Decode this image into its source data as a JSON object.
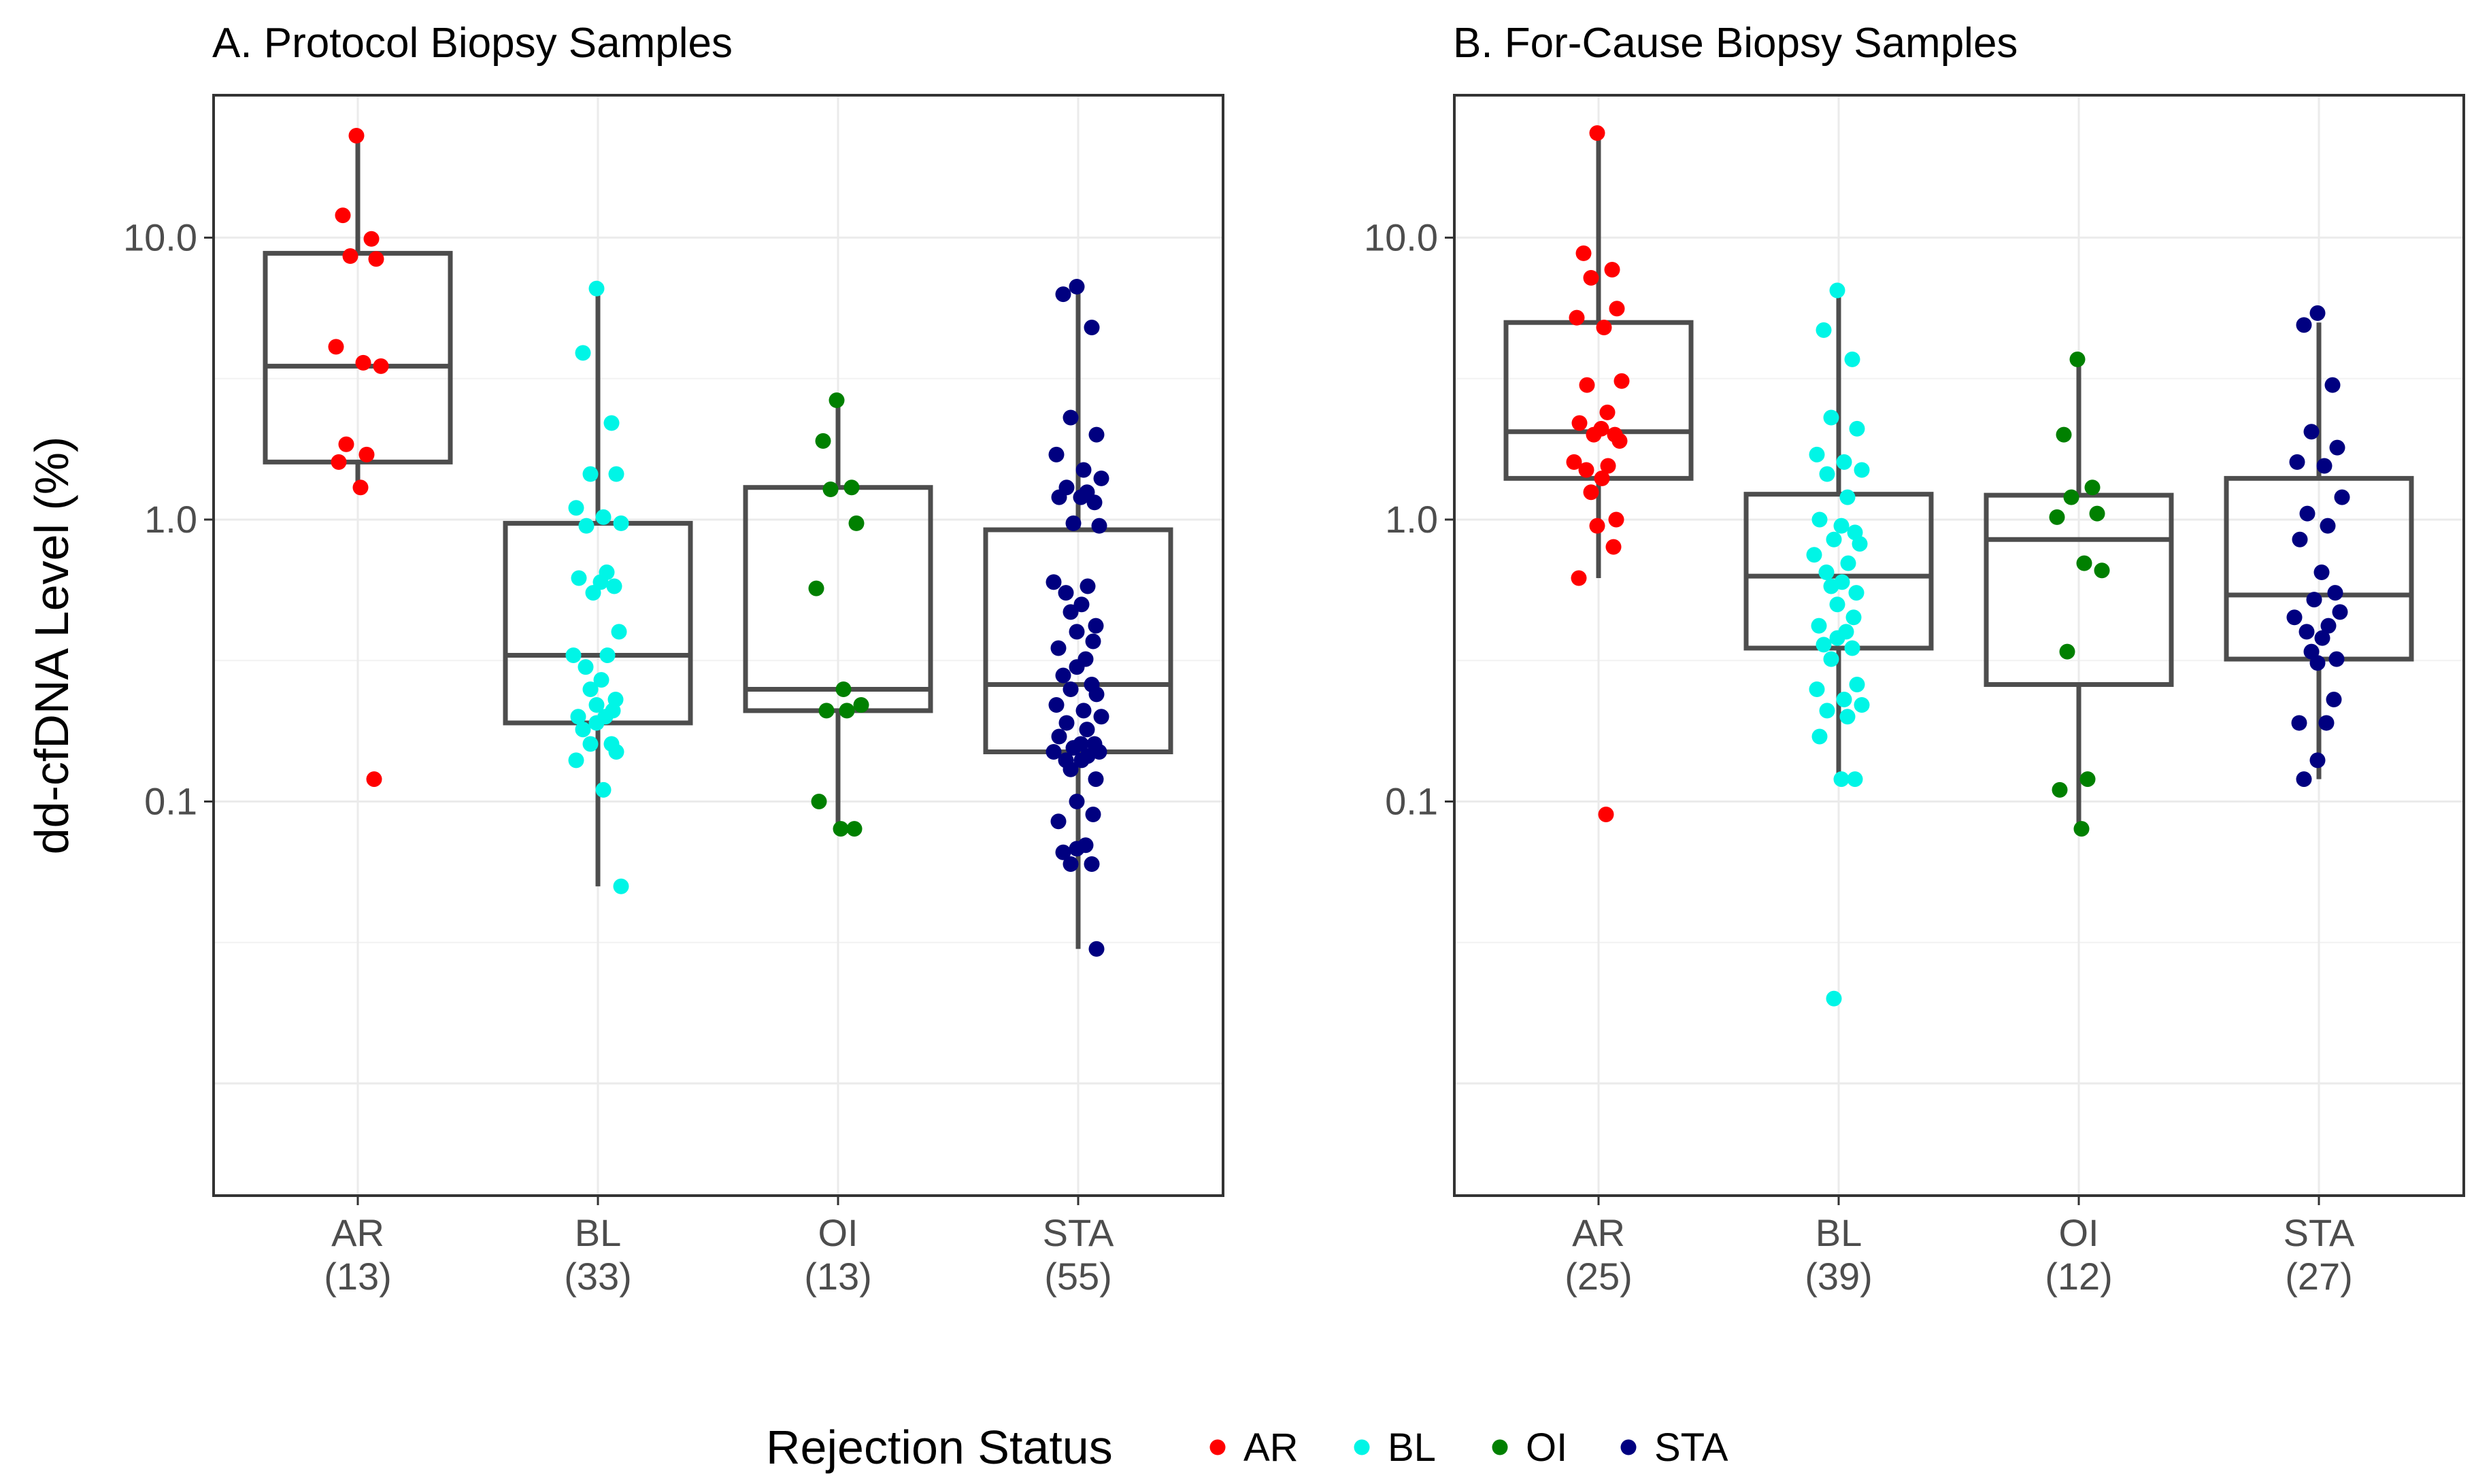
{
  "chart_data": {
    "type": "box-jitter",
    "y_scale": "log10",
    "ylabel": "dd-cfDNA Level (%)",
    "y_ticks": [
      {
        "value": 0.1,
        "label": "0.1"
      },
      {
        "value": 1.0,
        "label": "1.0"
      },
      {
        "value": 10.0,
        "label": "10.0"
      }
    ],
    "ylim": [
      0.004,
      32
    ],
    "categories": [
      "AR",
      "BL",
      "OI",
      "STA"
    ],
    "legend": {
      "title": "Rejection Status",
      "position": "bottom",
      "entries": [
        {
          "label": "AR",
          "color": "#ff0000"
        },
        {
          "label": "BL",
          "color": "#00f5e6"
        },
        {
          "label": "OI",
          "color": "#008000"
        },
        {
          "label": "STA",
          "color": "#000080"
        }
      ]
    },
    "panels": [
      {
        "title": "A. Protocol Biopsy Samples",
        "groups": [
          {
            "category": "AR",
            "n_label": "(13)",
            "box": {
              "lower_whisker": 1.3,
              "q1": 1.6,
              "median": 3.5,
              "q3": 8.8,
              "upper_whisker": 23
            },
            "points": [
              23,
              12,
              9.9,
              8.6,
              8.4,
              4.1,
              3.6,
              3.5,
              1.85,
              1.7,
              1.6,
              1.3,
              0.12
            ]
          },
          {
            "category": "BL",
            "n_label": "(33)",
            "box": {
              "lower_whisker": 0.05,
              "q1": 0.19,
              "median": 0.33,
              "q3": 0.97,
              "upper_whisker": 6.5
            },
            "points": [
              6.6,
              3.9,
              2.2,
              1.45,
              1.45,
              1.1,
              1.02,
              0.97,
              0.95,
              0.65,
              0.62,
              0.6,
              0.58,
              0.55,
              0.4,
              0.33,
              0.33,
              0.3,
              0.27,
              0.25,
              0.23,
              0.22,
              0.21,
              0.2,
              0.2,
              0.19,
              0.18,
              0.16,
              0.16,
              0.15,
              0.14,
              0.11,
              0.05
            ]
          },
          {
            "category": "OI",
            "n_label": "(13)",
            "box": {
              "lower_whisker": 0.08,
              "q1": 0.21,
              "median": 0.25,
              "q3": 1.3,
              "upper_whisker": 2.6
            },
            "points": [
              2.65,
              1.9,
              1.3,
              1.28,
              0.97,
              0.57,
              0.25,
              0.22,
              0.21,
              0.21,
              0.1,
              0.08,
              0.08
            ]
          },
          {
            "category": "STA",
            "n_label": "(55)",
            "box": {
              "lower_whisker": 0.03,
              "q1": 0.15,
              "median": 0.26,
              "q3": 0.92,
              "upper_whisker": 6.5
            },
            "points": [
              6.7,
              6.3,
              4.8,
              2.3,
              2.0,
              1.7,
              1.5,
              1.4,
              1.3,
              1.25,
              1.2,
              1.2,
              1.15,
              0.97,
              0.95,
              0.6,
              0.58,
              0.55,
              0.5,
              0.47,
              0.42,
              0.4,
              0.37,
              0.35,
              0.32,
              0.3,
              0.28,
              0.26,
              0.25,
              0.24,
              0.22,
              0.21,
              0.2,
              0.19,
              0.18,
              0.17,
              0.16,
              0.16,
              0.155,
              0.15,
              0.15,
              0.145,
              0.14,
              0.14,
              0.13,
              0.12,
              0.1,
              0.09,
              0.085,
              0.07,
              0.068,
              0.066,
              0.06,
              0.06,
              0.03
            ]
          }
        ]
      },
      {
        "title": "B. For-Cause Biopsy Samples",
        "groups": [
          {
            "category": "AR",
            "n_label": "(25)",
            "box": {
              "lower_whisker": 0.62,
              "q1": 1.4,
              "median": 2.05,
              "q3": 5.0,
              "upper_whisker": 23
            },
            "points": [
              23.5,
              8.8,
              7.7,
              7.2,
              5.6,
              5.2,
              4.8,
              3.1,
              3.0,
              2.4,
              2.2,
              2.1,
              2.0,
              2.0,
              1.9,
              1.6,
              1.55,
              1.5,
              1.4,
              1.25,
              1.0,
              0.95,
              0.8,
              0.62,
              0.09
            ]
          },
          {
            "category": "BL",
            "n_label": "(39)",
            "box": {
              "lower_whisker": 0.12,
              "q1": 0.35,
              "median": 0.63,
              "q3": 1.23,
              "upper_whisker": 6.5
            },
            "points": [
              6.5,
              4.7,
              3.7,
              2.3,
              2.1,
              1.7,
              1.6,
              1.5,
              1.45,
              1.2,
              1.0,
              0.95,
              0.9,
              0.85,
              0.82,
              0.75,
              0.7,
              0.65,
              0.6,
              0.58,
              0.55,
              0.5,
              0.45,
              0.42,
              0.4,
              0.38,
              0.36,
              0.35,
              0.32,
              0.26,
              0.25,
              0.23,
              0.22,
              0.21,
              0.2,
              0.17,
              0.12,
              0.12,
              0.02
            ]
          },
          {
            "category": "OI",
            "n_label": "(12)",
            "box": {
              "lower_whisker": 0.08,
              "q1": 0.26,
              "median": 0.85,
              "q3": 1.22,
              "upper_whisker": 3.6
            },
            "points": [
              3.7,
              2.0,
              1.3,
              1.2,
              1.05,
              1.02,
              0.7,
              0.66,
              0.34,
              0.12,
              0.11,
              0.08
            ]
          },
          {
            "category": "STA",
            "n_label": "(27)",
            "box": {
              "lower_whisker": 0.12,
              "q1": 0.32,
              "median": 0.54,
              "q3": 1.4,
              "upper_whisker": 5.0
            },
            "points": [
              5.4,
              4.9,
              3.0,
              2.05,
              1.8,
              1.6,
              1.55,
              1.2,
              1.05,
              0.95,
              0.85,
              0.65,
              0.55,
              0.52,
              0.47,
              0.45,
              0.42,
              0.4,
              0.38,
              0.34,
              0.32,
              0.31,
              0.23,
              0.19,
              0.19,
              0.14,
              0.12
            ]
          }
        ]
      }
    ]
  }
}
